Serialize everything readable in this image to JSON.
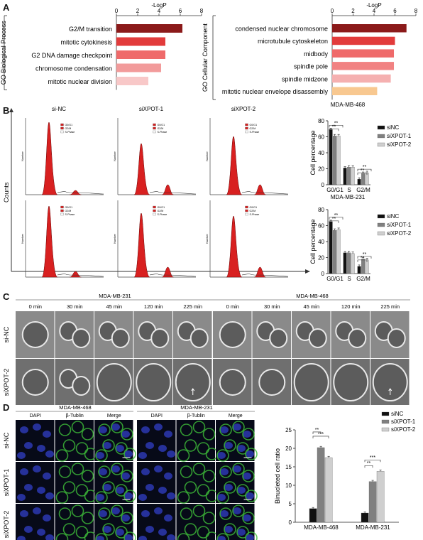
{
  "panels": {
    "A": "A",
    "B": "B",
    "C": "C",
    "D": "D"
  },
  "A": {
    "bp": {
      "side_label": "GO Biological Process",
      "axis_title": "-LogP",
      "ticks": [
        "0",
        "2",
        "4",
        "6",
        "8"
      ],
      "terms": [
        {
          "label": "G2/M transition",
          "value": 6.2,
          "color": "#8b1a1a"
        },
        {
          "label": "mitotic cytokinesis",
          "value": 4.6,
          "color": "#e23b3b"
        },
        {
          "label": "G2 DNA damage checkpoint",
          "value": 4.6,
          "color": "#ef6a6a"
        },
        {
          "label": "chromosome condensation",
          "value": 4.2,
          "color": "#f29b9b"
        },
        {
          "label": "mitotic nuclear division",
          "value": 3.0,
          "color": "#f8c8c8"
        }
      ],
      "max": 8
    },
    "cc": {
      "side_label": "GO Cellular Component",
      "axis_title": "-LogP",
      "ticks": [
        "0",
        "2",
        "4",
        "6",
        "8"
      ],
      "terms": [
        {
          "label": "condensed nuclear chromosome",
          "value": 7.1,
          "color": "#8b1a1a"
        },
        {
          "label": "microtubule cytoskeleton",
          "value": 6.0,
          "color": "#e23b3b"
        },
        {
          "label": "midbody",
          "value": 5.9,
          "color": "#ef6a6a"
        },
        {
          "label": "spindle pole",
          "value": 5.9,
          "color": "#f18282"
        },
        {
          "label": "spindle midzone",
          "value": 5.6,
          "color": "#f5b0b0"
        },
        {
          "label": "mitotic nuclear envelope disassembly",
          "value": 4.3,
          "color": "#f8c890"
        }
      ],
      "max": 8
    }
  },
  "B": {
    "col_titles": [
      "si-NC",
      "siXPOT-1",
      "siXPOT-2"
    ],
    "y_label": "Counts",
    "legend_small": [
      "G0/G1",
      "G2/M",
      "S-Phase"
    ],
    "hist_y": "Number",
    "charts": [
      {
        "title": "MDA-MB-468",
        "ylabel": "Cell percentage",
        "yticks": [
          "0",
          "20",
          "40",
          "60",
          "80"
        ],
        "ymax": 80,
        "categories": [
          "G0/G1",
          "S",
          "G2/M"
        ],
        "series": [
          {
            "name": "siNC",
            "values": [
              69,
              21,
              7
            ],
            "color": "#111111"
          },
          {
            "name": "siXPOT-1",
            "values": [
              61,
              22,
              14
            ],
            "color": "#808080"
          },
          {
            "name": "siXPOT-2",
            "values": [
              61,
              22,
              15
            ],
            "color": "#cfcfcf"
          }
        ],
        "sig": "**"
      },
      {
        "title": "MDA-MB-231",
        "ylabel": "Cell percentage",
        "yticks": [
          "0",
          "20",
          "40",
          "60",
          "80"
        ],
        "ymax": 80,
        "categories": [
          "G0/G1",
          "S",
          "G2/M"
        ],
        "series": [
          {
            "name": "siNC",
            "values": [
              65,
              26,
              9
            ],
            "color": "#111111"
          },
          {
            "name": "siXPOT-1",
            "values": [
              54,
              26,
              18
            ],
            "color": "#808080"
          },
          {
            "name": "siXPOT-2",
            "values": [
              55,
              25,
              17
            ],
            "color": "#cfcfcf"
          }
        ],
        "sig": "**"
      }
    ]
  },
  "C": {
    "lines": [
      "MDA-MB-231",
      "MDA-MB-468"
    ],
    "times": [
      "0 min",
      "30 min",
      "45 min",
      "120 min",
      "225 min"
    ],
    "rows": [
      "si-NC",
      "siXPOT-2"
    ]
  },
  "D": {
    "lines": [
      "MDA-MB-468",
      "MDA-MB-231"
    ],
    "channels": [
      "DAPI",
      "β-Tublin",
      "Merge"
    ],
    "rows": [
      "si-NC",
      "siXPOT-1",
      "siXPOT-2"
    ],
    "chart": {
      "ylabel": "Binucleted cell ratio",
      "yticks": [
        "0",
        "5",
        "10",
        "15",
        "20",
        "25"
      ],
      "ymax": 25,
      "categories": [
        "MDA-MB-468",
        "MDA-MB-231"
      ],
      "series": [
        {
          "name": "siNC",
          "values": [
            3.7,
            2.5
          ],
          "color": "#111111"
        },
        {
          "name": "siXPOT-1",
          "values": [
            20.2,
            11.0
          ],
          "color": "#808080"
        },
        {
          "name": "siXPOT-2",
          "values": [
            17.5,
            13.8
          ],
          "color": "#cfcfcf"
        }
      ],
      "sig": [
        "**",
        "***",
        "**",
        "***"
      ]
    }
  }
}
